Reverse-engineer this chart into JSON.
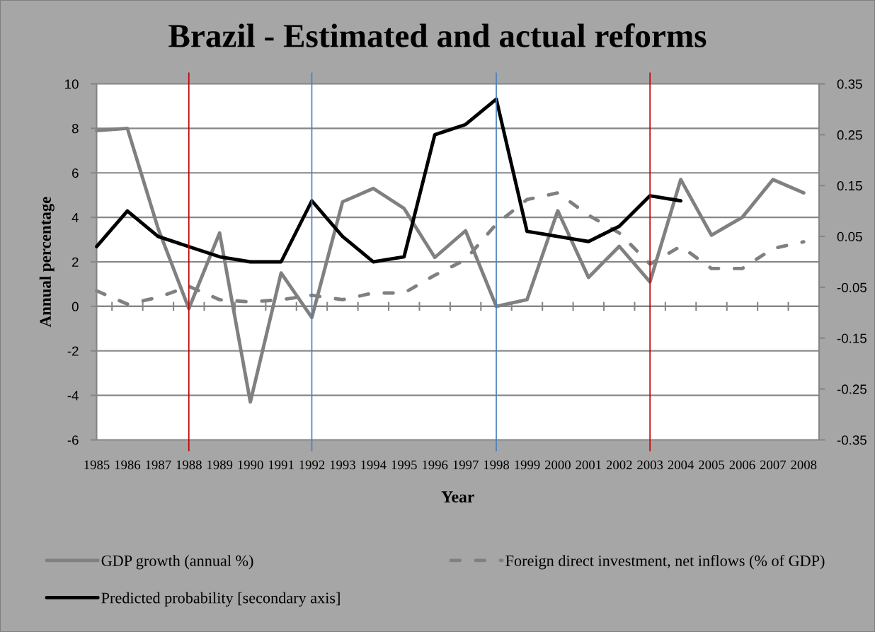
{
  "chart_data": {
    "type": "line",
    "title": "Brazil - Estimated and actual reforms",
    "xlabel": "Year",
    "ylabel": "Annual percentage",
    "categories": [
      "1985",
      "1986",
      "1987",
      "1988",
      "1989",
      "1990",
      "1991",
      "1992",
      "1993",
      "1994",
      "1995",
      "1996",
      "1997",
      "1998",
      "1999",
      "2000",
      "2001",
      "2002",
      "2003",
      "2004",
      "2005",
      "2006",
      "2007",
      "2008"
    ],
    "series": [
      {
        "name": "GDP growth (annual %)",
        "color": "#808080",
        "line_style": "solid",
        "values": [
          7.9,
          8.0,
          3.5,
          -0.1,
          3.3,
          -4.3,
          1.5,
          -0.5,
          4.7,
          5.3,
          4.4,
          2.2,
          3.4,
          0.0,
          0.3,
          4.3,
          1.3,
          2.7,
          1.1,
          5.7,
          3.2,
          4.0,
          5.7,
          5.1
        ]
      },
      {
        "name": "Foreign direct investment, net inflows (% of GDP)",
        "color": "#808080",
        "line_style": "dashed",
        "values": [
          0.7,
          0.1,
          0.4,
          0.9,
          0.3,
          0.2,
          0.3,
          0.5,
          0.3,
          0.6,
          0.6,
          1.4,
          2.1,
          3.7,
          4.8,
          5.1,
          4.1,
          3.3,
          1.9,
          2.7,
          1.7,
          1.7,
          2.6,
          2.9
        ]
      },
      {
        "name": "Predicted probability [secondary axis]",
        "color": "#000000",
        "line_style": "solid",
        "axis": "y2",
        "values": [
          0.03,
          0.1,
          0.05,
          0.03,
          0.01,
          0.0,
          0.0,
          0.12,
          0.05,
          0.0,
          0.01,
          0.25,
          0.27,
          0.32,
          0.06,
          0.05,
          0.04,
          0.07,
          0.13,
          0.12,
          null,
          null,
          null,
          null
        ]
      }
    ],
    "ylim": [
      -6,
      10
    ],
    "yticks": [
      -6,
      -4,
      -2,
      0,
      2,
      4,
      6,
      8,
      10
    ],
    "y2lim": [
      -0.35,
      0.35
    ],
    "y2ticks": [
      -0.35,
      -0.25,
      -0.15,
      -0.05,
      0.05,
      0.15,
      0.25,
      0.35
    ],
    "ref_lines": [
      {
        "axis": "x",
        "value": "1988",
        "color": "#c00000"
      },
      {
        "axis": "x",
        "value": "1992",
        "color": "#4a7ebb"
      },
      {
        "axis": "x",
        "value": "1998",
        "color": "#4a7ebb"
      },
      {
        "axis": "x",
        "value": "2003",
        "color": "#c00000"
      }
    ],
    "grid": "y",
    "legend": "bottom"
  }
}
